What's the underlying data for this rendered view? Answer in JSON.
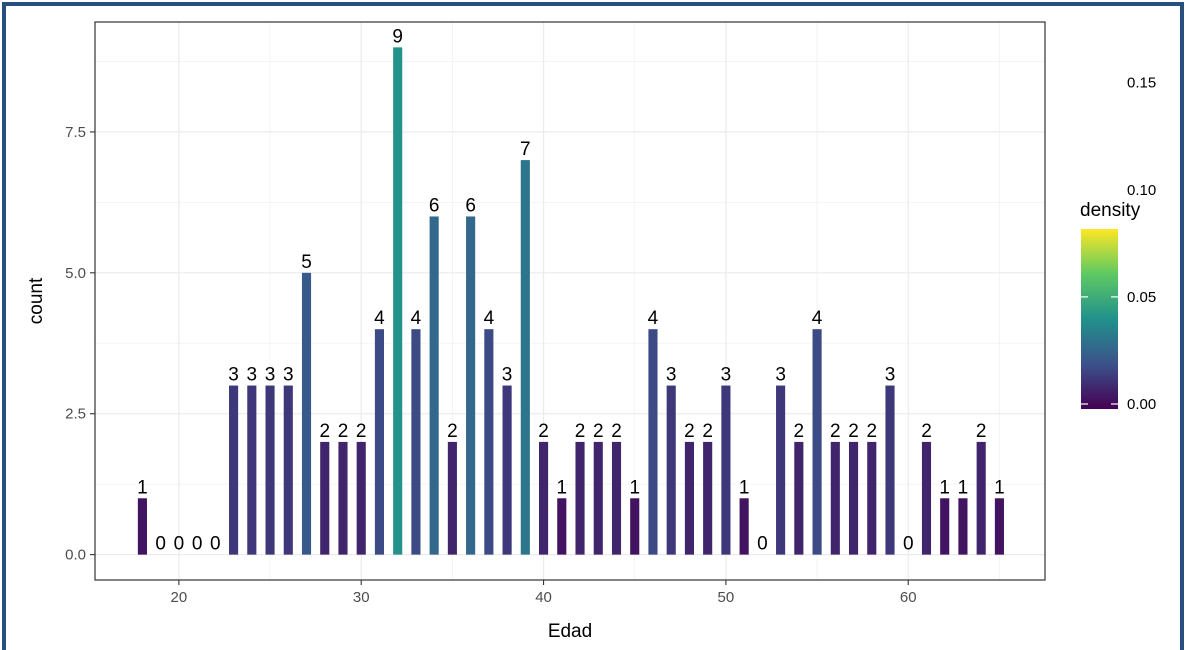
{
  "chart_data": {
    "type": "bar",
    "xlabel": "Edad",
    "ylabel": "count",
    "xlim": [
      15.4,
      67.5
    ],
    "ylim": [
      -0.45,
      9.45
    ],
    "x_ticks": [
      "20",
      "30",
      "40",
      "50",
      "60"
    ],
    "y_ticks": [
      "0.0",
      "2.5",
      "5.0",
      "7.5"
    ],
    "grid": true,
    "x": [
      18,
      19,
      20,
      21,
      22,
      23,
      24,
      25,
      26,
      27,
      28,
      29,
      30,
      31,
      32,
      33,
      34,
      35,
      36,
      37,
      38,
      39,
      40,
      41,
      42,
      43,
      44,
      45,
      46,
      47,
      48,
      49,
      50,
      51,
      52,
      53,
      54,
      55,
      56,
      57,
      58,
      59,
      60,
      61,
      62,
      63,
      64,
      65
    ],
    "values": [
      1,
      0,
      0,
      0,
      0,
      3,
      3,
      3,
      3,
      5,
      2,
      2,
      2,
      4,
      9,
      4,
      6,
      2,
      6,
      4,
      3,
      7,
      2,
      1,
      2,
      2,
      2,
      1,
      4,
      3,
      2,
      2,
      3,
      1,
      0,
      3,
      2,
      4,
      2,
      2,
      2,
      3,
      0,
      2,
      1,
      1,
      2,
      1
    ],
    "fill_scale": {
      "title": "density",
      "ticks": [
        "0.00",
        "0.05",
        "0.10",
        "0.15"
      ],
      "tick_values": [
        0,
        0.05,
        0.1,
        0.15
      ],
      "colors": [
        "#440154",
        "#3b528b",
        "#21918c",
        "#5ec962",
        "#fde725"
      ]
    }
  }
}
